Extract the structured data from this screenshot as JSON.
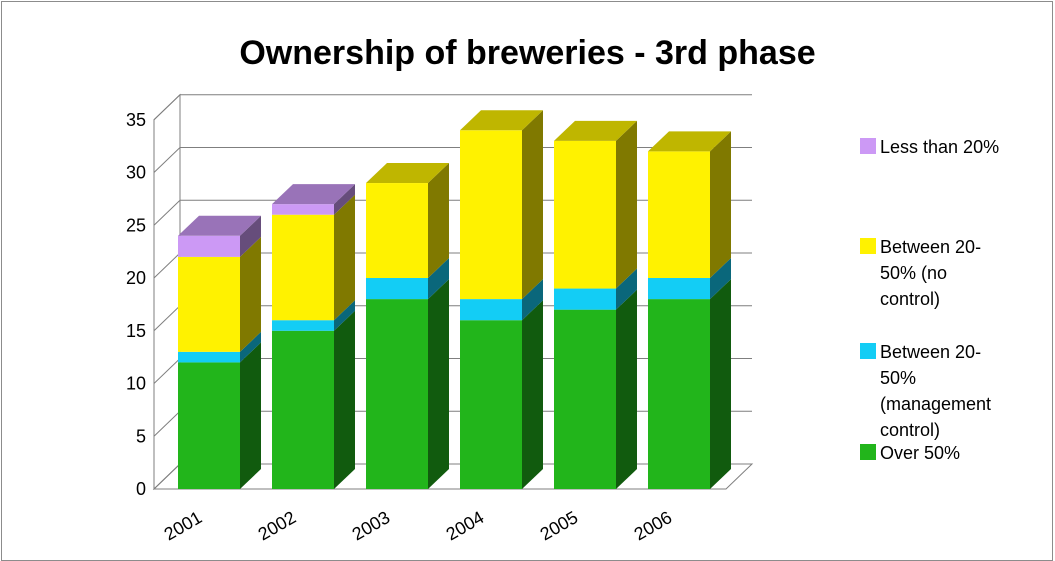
{
  "chart_data": {
    "type": "bar",
    "stacked": true,
    "style": "3d",
    "title": "Ownership of breweries - 3rd phase",
    "xlabel": "",
    "ylabel": "",
    "categories": [
      "2001",
      "2002",
      "2003",
      "2004",
      "2005",
      "2006"
    ],
    "yticks": [
      "0",
      "5",
      "10",
      "15",
      "20",
      "25",
      "30",
      "35"
    ],
    "ylim": [
      0,
      35
    ],
    "grid": true,
    "legend_position": "right",
    "series": [
      {
        "name": "Over 50%",
        "values": [
          12,
          15,
          18,
          16,
          17,
          18
        ],
        "color": "#22b51b"
      },
      {
        "name": "Between 20-50% (management control)",
        "values": [
          1,
          1,
          2,
          2,
          2,
          2
        ],
        "color": "#13cdf5"
      },
      {
        "name": "Between 20-50% (no control)",
        "values": [
          9,
          10,
          9,
          16,
          14,
          12
        ],
        "color": "#fff200"
      },
      {
        "name": "Less than 20%",
        "values": [
          2,
          1,
          0,
          0,
          0,
          0
        ],
        "color": "#cc99f5"
      }
    ]
  },
  "legend": {
    "items": [
      {
        "text": "Less than 20%",
        "color": "#cc99f5"
      },
      {
        "text": "Between 20-50% (no control)",
        "color": "#fff200"
      },
      {
        "text": "Between 20-50% (management control)",
        "color": "#13cdf5"
      },
      {
        "text": "Over 50%",
        "color": "#22b51b"
      }
    ]
  }
}
